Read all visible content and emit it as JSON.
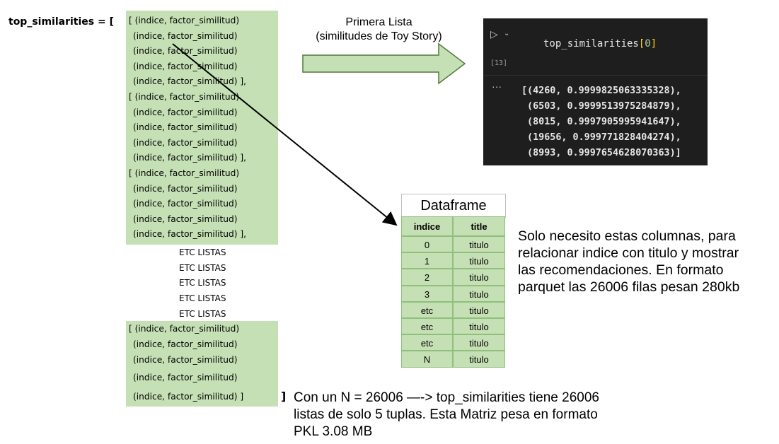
{
  "left": {
    "varname": "top_similarities = [",
    "groups": [
      [
        "[ (indice, factor_similitud)",
        "(indice, factor_similitud)",
        "(indice, factor_similitud)",
        "(indice, factor_similitud)",
        "(indice, factor_similitud)  ],"
      ],
      [
        "[ (indice, factor_similitud)",
        "(indice, factor_similitud)",
        "(indice, factor_similitud)",
        "(indice, factor_similitud)",
        "(indice, factor_similitud)  ],"
      ],
      [
        "[ (indice, factor_similitud)",
        "(indice, factor_similitud)",
        "(indice, factor_similitud)",
        "(indice, factor_similitud)",
        "(indice, factor_similitud)  ],"
      ],
      [
        "[ (indice, factor_similitud)",
        "(indice, factor_similitud)",
        "(indice, factor_similitud)",
        "(indice, factor_similitud)",
        "(indice, factor_similitud)  ]"
      ]
    ],
    "etc": [
      "ETC LISTAS",
      "ETC LISTAS",
      "ETC LISTAS",
      "ETC LISTAS",
      "ETC LISTAS"
    ],
    "closing": "]"
  },
  "arrow_label": [
    "Primera Lista",
    "(similitudes de Toy Story)"
  ],
  "code_cell": {
    "run_icon": "run-triangle-icon",
    "cell_number": "[13]",
    "ellipsis": "···",
    "code_prefix": "top_similarities",
    "code_bracket_open": "[",
    "code_index": "0",
    "code_bracket_close": "]",
    "output": [
      "[(4260, 0.9999825063335328),",
      " (6503, 0.9999513975284879),",
      " (8015, 0.9997905995941647),",
      " (19656, 0.999771828404274),",
      " (8993, 0.9997654628070363)]"
    ],
    "colors": {
      "background": "#1e1e1e",
      "text": "#e6e6e6",
      "bracket": "#ffd700",
      "index": "#b5cea8"
    }
  },
  "dataframe": {
    "title": "Dataframe",
    "columns": [
      "indice",
      "title"
    ],
    "rows": [
      [
        "0",
        "titulo"
      ],
      [
        "1",
        "titulo"
      ],
      [
        "2",
        "titulo"
      ],
      [
        "3",
        "titulo"
      ],
      [
        "etc",
        "titulo"
      ],
      [
        "etc",
        "titulo"
      ],
      [
        "etc",
        "titulo"
      ],
      [
        "N",
        "titulo"
      ]
    ]
  },
  "notes": {
    "right": [
      "Solo necesito estas columnas, para",
      "relacionar indice con titulo y mostrar",
      "las recomendaciones. En formato",
      "parquet las 26006 filas pesan 280kb"
    ],
    "bottom": [
      "Con un  N = 26006 —-> top_similarities tiene 26006",
      "listas de solo 5 tuplas. Esta Matriz pesa en formato",
      "PKL 3.08 MB"
    ]
  },
  "colors": {
    "green_fill": "#c5e0b4",
    "arrow_fill": "#c5e0b4",
    "arrow_stroke": "#4f7a3a"
  }
}
